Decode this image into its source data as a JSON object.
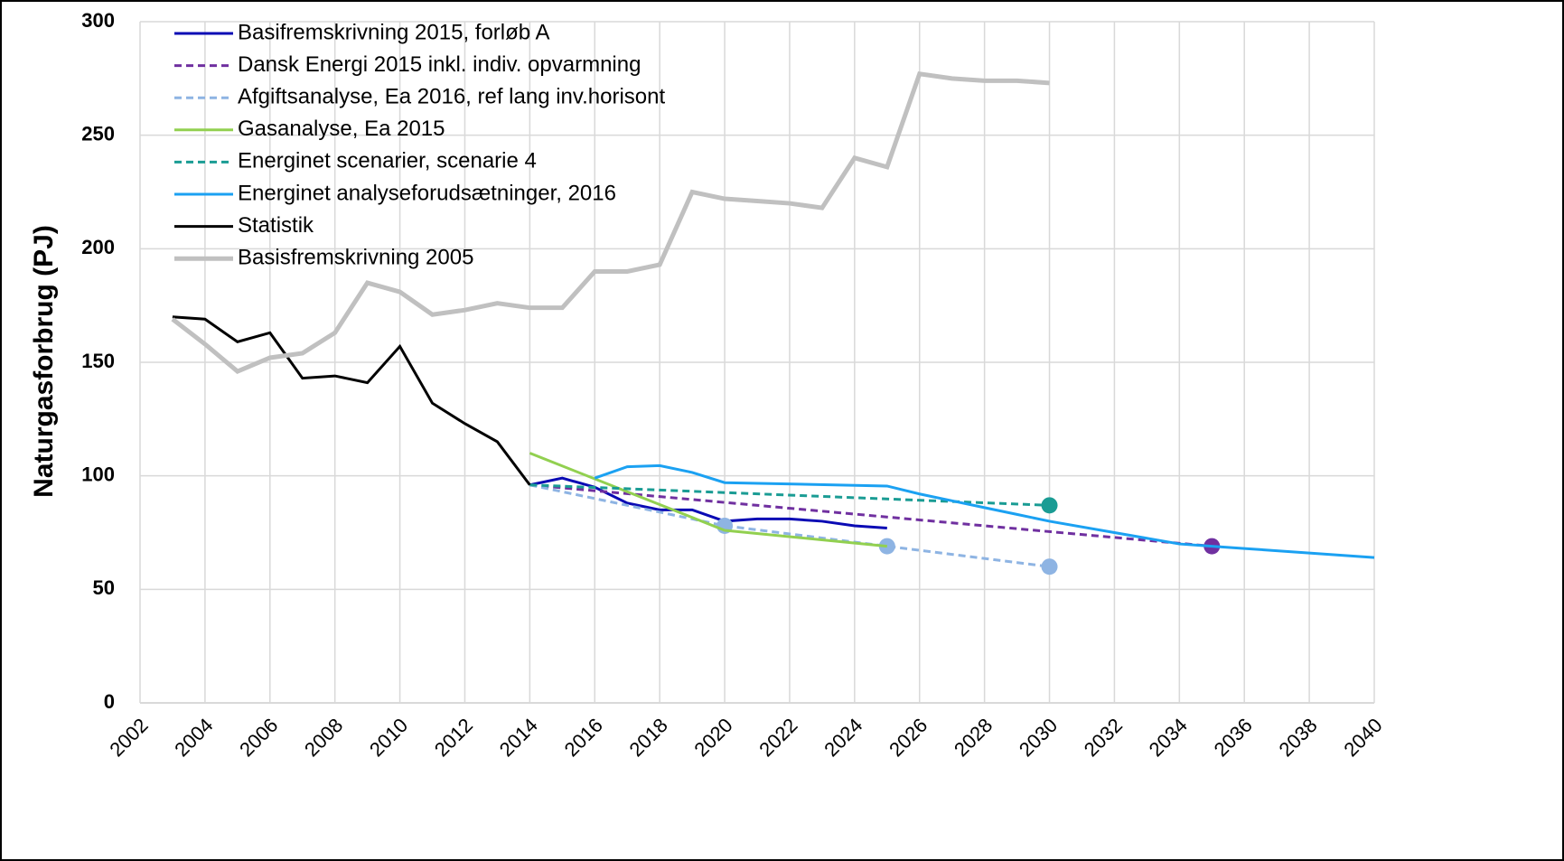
{
  "chart_data": {
    "type": "line",
    "ylabel": "Naturgasforbrug (PJ)",
    "xlim": [
      2002,
      2040
    ],
    "xticks": [
      2002,
      2004,
      2006,
      2008,
      2010,
      2012,
      2014,
      2016,
      2018,
      2020,
      2022,
      2024,
      2026,
      2028,
      2030,
      2032,
      2034,
      2036,
      2038,
      2040
    ],
    "ylim": [
      0,
      300
    ],
    "yticks": [
      0,
      50,
      100,
      150,
      200,
      250,
      300
    ],
    "grid": true,
    "legend": "upper left",
    "series": [
      {
        "name": "Basifremskrivning 2015, forløb A",
        "color": "#0a0ab4",
        "dash": false,
        "x": [
          2014,
          2015,
          2016,
          2017,
          2018,
          2019,
          2020,
          2021,
          2022,
          2023,
          2024,
          2025
        ],
        "values": [
          96,
          99,
          95,
          88,
          85,
          85,
          80,
          81,
          81,
          80,
          78,
          77
        ]
      },
      {
        "name": "Dansk Energi 2015 inkl. indiv. opvarmning",
        "color": "#7030a0",
        "dash": true,
        "x": [
          2014,
          2035
        ],
        "values": [
          96,
          69
        ],
        "marker_points": [
          1
        ]
      },
      {
        "name": "Afgiftsanalyse, Ea 2016, ref lang inv.horisont",
        "color": "#8eb4e3",
        "dash": true,
        "x": [
          2014,
          2020,
          2025,
          2030
        ],
        "values": [
          96,
          78,
          69,
          60
        ],
        "marker_points": [
          1,
          2,
          3
        ]
      },
      {
        "name": "Gasanalyse, Ea 2015",
        "color": "#92d050",
        "dash": false,
        "x": [
          2014,
          2020,
          2025
        ],
        "values": [
          110,
          76,
          69
        ]
      },
      {
        "name": "Energinet scenarier, scenarie 4",
        "color": "#1a9c94",
        "dash": true,
        "x": [
          2014,
          2030
        ],
        "values": [
          96,
          87
        ],
        "marker_points": [
          1
        ]
      },
      {
        "name": "Energinet analyseforudsætninger, 2016",
        "color": "#1ba1f2",
        "dash": false,
        "x": [
          2016,
          2017,
          2018,
          2019,
          2020,
          2025,
          2026,
          2027,
          2028,
          2029,
          2030,
          2032,
          2034,
          2035,
          2036,
          2038,
          2040
        ],
        "values": [
          99,
          104,
          104.5,
          101.5,
          97,
          95.5,
          92,
          89,
          86,
          83,
          80,
          75,
          70,
          69,
          68,
          66,
          64
        ]
      },
      {
        "name": "Statistik",
        "color": "#000000",
        "dash": false,
        "x": [
          2003,
          2004,
          2005,
          2006,
          2007,
          2008,
          2009,
          2010,
          2011,
          2012,
          2013,
          2014
        ],
        "values": [
          170,
          169,
          159,
          163,
          143,
          144,
          141,
          157,
          132,
          123,
          115,
          96
        ]
      },
      {
        "name": "Basisfremskrivning 2005",
        "color": "#c0c0c0",
        "dash": false,
        "width": 5,
        "x": [
          2003,
          2004,
          2005,
          2006,
          2007,
          2008,
          2009,
          2010,
          2011,
          2012,
          2013,
          2014,
          2015,
          2016,
          2017,
          2018,
          2019,
          2020,
          2021,
          2022,
          2023,
          2024,
          2025,
          2026,
          2027,
          2028,
          2029,
          2030
        ],
        "values": [
          169,
          158,
          146,
          152,
          154,
          163,
          185,
          181,
          171,
          173,
          176,
          174,
          174,
          190,
          190,
          193,
          225,
          222,
          221,
          220,
          218,
          240,
          236,
          277,
          275,
          274,
          274,
          273
        ]
      }
    ]
  }
}
